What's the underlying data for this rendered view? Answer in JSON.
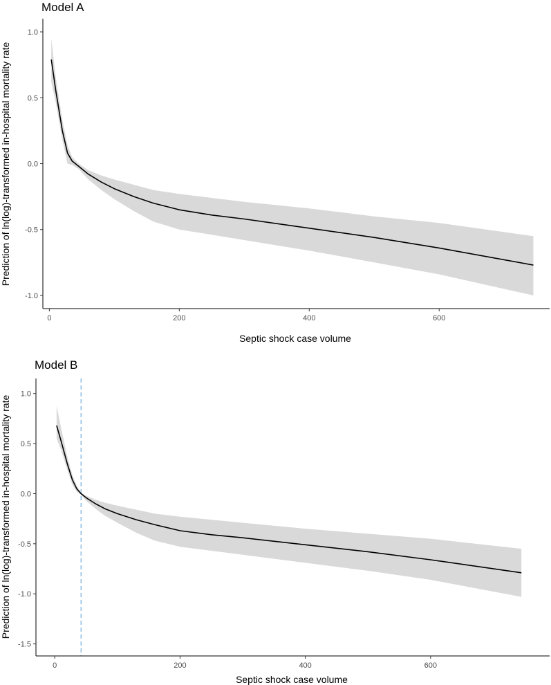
{
  "chart_data": [
    {
      "type": "line",
      "title": "Model A",
      "xlabel": "Septic shock case volume",
      "ylabel": "Prediction of ln(log)-transformed in-hospital mortality rate",
      "xlim": [
        -10,
        770
      ],
      "ylim": [
        -1.1,
        1.1
      ],
      "xticks": [
        0,
        200,
        400,
        600
      ],
      "yticks": [
        1.0,
        0.5,
        0.0,
        -0.5,
        -1.0
      ],
      "xtick_labels": [
        "0",
        "200",
        "400",
        "600"
      ],
      "ytick_labels": [
        "1.0",
        "0.5",
        "0.0",
        "-0.5",
        "-1.0"
      ],
      "grid": false,
      "series": [
        {
          "color": "#000000",
          "band_color": "#d9d9d9",
          "x": [
            3,
            10,
            20,
            28,
            35,
            45,
            60,
            80,
            100,
            130,
            160,
            200,
            250,
            300,
            400,
            500,
            600,
            745
          ],
          "y": [
            0.79,
            0.55,
            0.25,
            0.08,
            0.02,
            -0.02,
            -0.08,
            -0.14,
            -0.19,
            -0.25,
            -0.3,
            -0.35,
            -0.39,
            -0.42,
            -0.49,
            -0.56,
            -0.64,
            -0.77
          ],
          "lower": [
            0.62,
            0.46,
            0.18,
            0.0,
            -0.01,
            -0.04,
            -0.12,
            -0.2,
            -0.27,
            -0.36,
            -0.44,
            -0.5,
            -0.54,
            -0.58,
            -0.66,
            -0.75,
            -0.84,
            -1.0
          ],
          "upper": [
            0.95,
            0.65,
            0.33,
            0.14,
            0.05,
            0.0,
            -0.05,
            -0.09,
            -0.12,
            -0.16,
            -0.2,
            -0.23,
            -0.26,
            -0.29,
            -0.34,
            -0.4,
            -0.45,
            -0.55
          ]
        }
      ]
    },
    {
      "type": "line",
      "title": "Model B",
      "xlabel": "Septic shock case volume",
      "ylabel": "Prediction of ln(log)-transformed in-hospital mortality rate",
      "xlim": [
        -30,
        790
      ],
      "ylim": [
        -1.62,
        1.15
      ],
      "xticks": [
        0,
        200,
        400,
        600
      ],
      "yticks": [
        1.0,
        0.5,
        0.0,
        -0.5,
        -1.0,
        -1.5
      ],
      "xtick_labels": [
        "0",
        "200",
        "400",
        "600"
      ],
      "ytick_labels": [
        "1.0",
        "0.5",
        "0.0",
        "-0.5",
        "-1.0",
        "-1.5"
      ],
      "grid": false,
      "reference_line": {
        "x": 42,
        "color": "#7fb3df",
        "style": "dashed"
      },
      "series": [
        {
          "color": "#000000",
          "band_color": "#d9d9d9",
          "x": [
            3,
            10,
            20,
            28,
            35,
            42,
            50,
            65,
            80,
            100,
            130,
            160,
            200,
            250,
            300,
            400,
            500,
            600,
            745
          ],
          "y": [
            0.68,
            0.53,
            0.3,
            0.14,
            0.05,
            0.0,
            -0.04,
            -0.1,
            -0.15,
            -0.2,
            -0.26,
            -0.31,
            -0.37,
            -0.41,
            -0.44,
            -0.51,
            -0.58,
            -0.66,
            -0.79
          ],
          "lower": [
            0.55,
            0.44,
            0.24,
            0.09,
            0.02,
            -0.01,
            -0.07,
            -0.15,
            -0.22,
            -0.29,
            -0.39,
            -0.47,
            -0.53,
            -0.57,
            -0.61,
            -0.69,
            -0.77,
            -0.86,
            -1.03
          ],
          "upper": [
            0.88,
            0.66,
            0.37,
            0.19,
            0.08,
            0.01,
            -0.02,
            -0.06,
            -0.09,
            -0.12,
            -0.16,
            -0.2,
            -0.23,
            -0.26,
            -0.29,
            -0.35,
            -0.4,
            -0.45,
            -0.55
          ]
        }
      ]
    }
  ]
}
